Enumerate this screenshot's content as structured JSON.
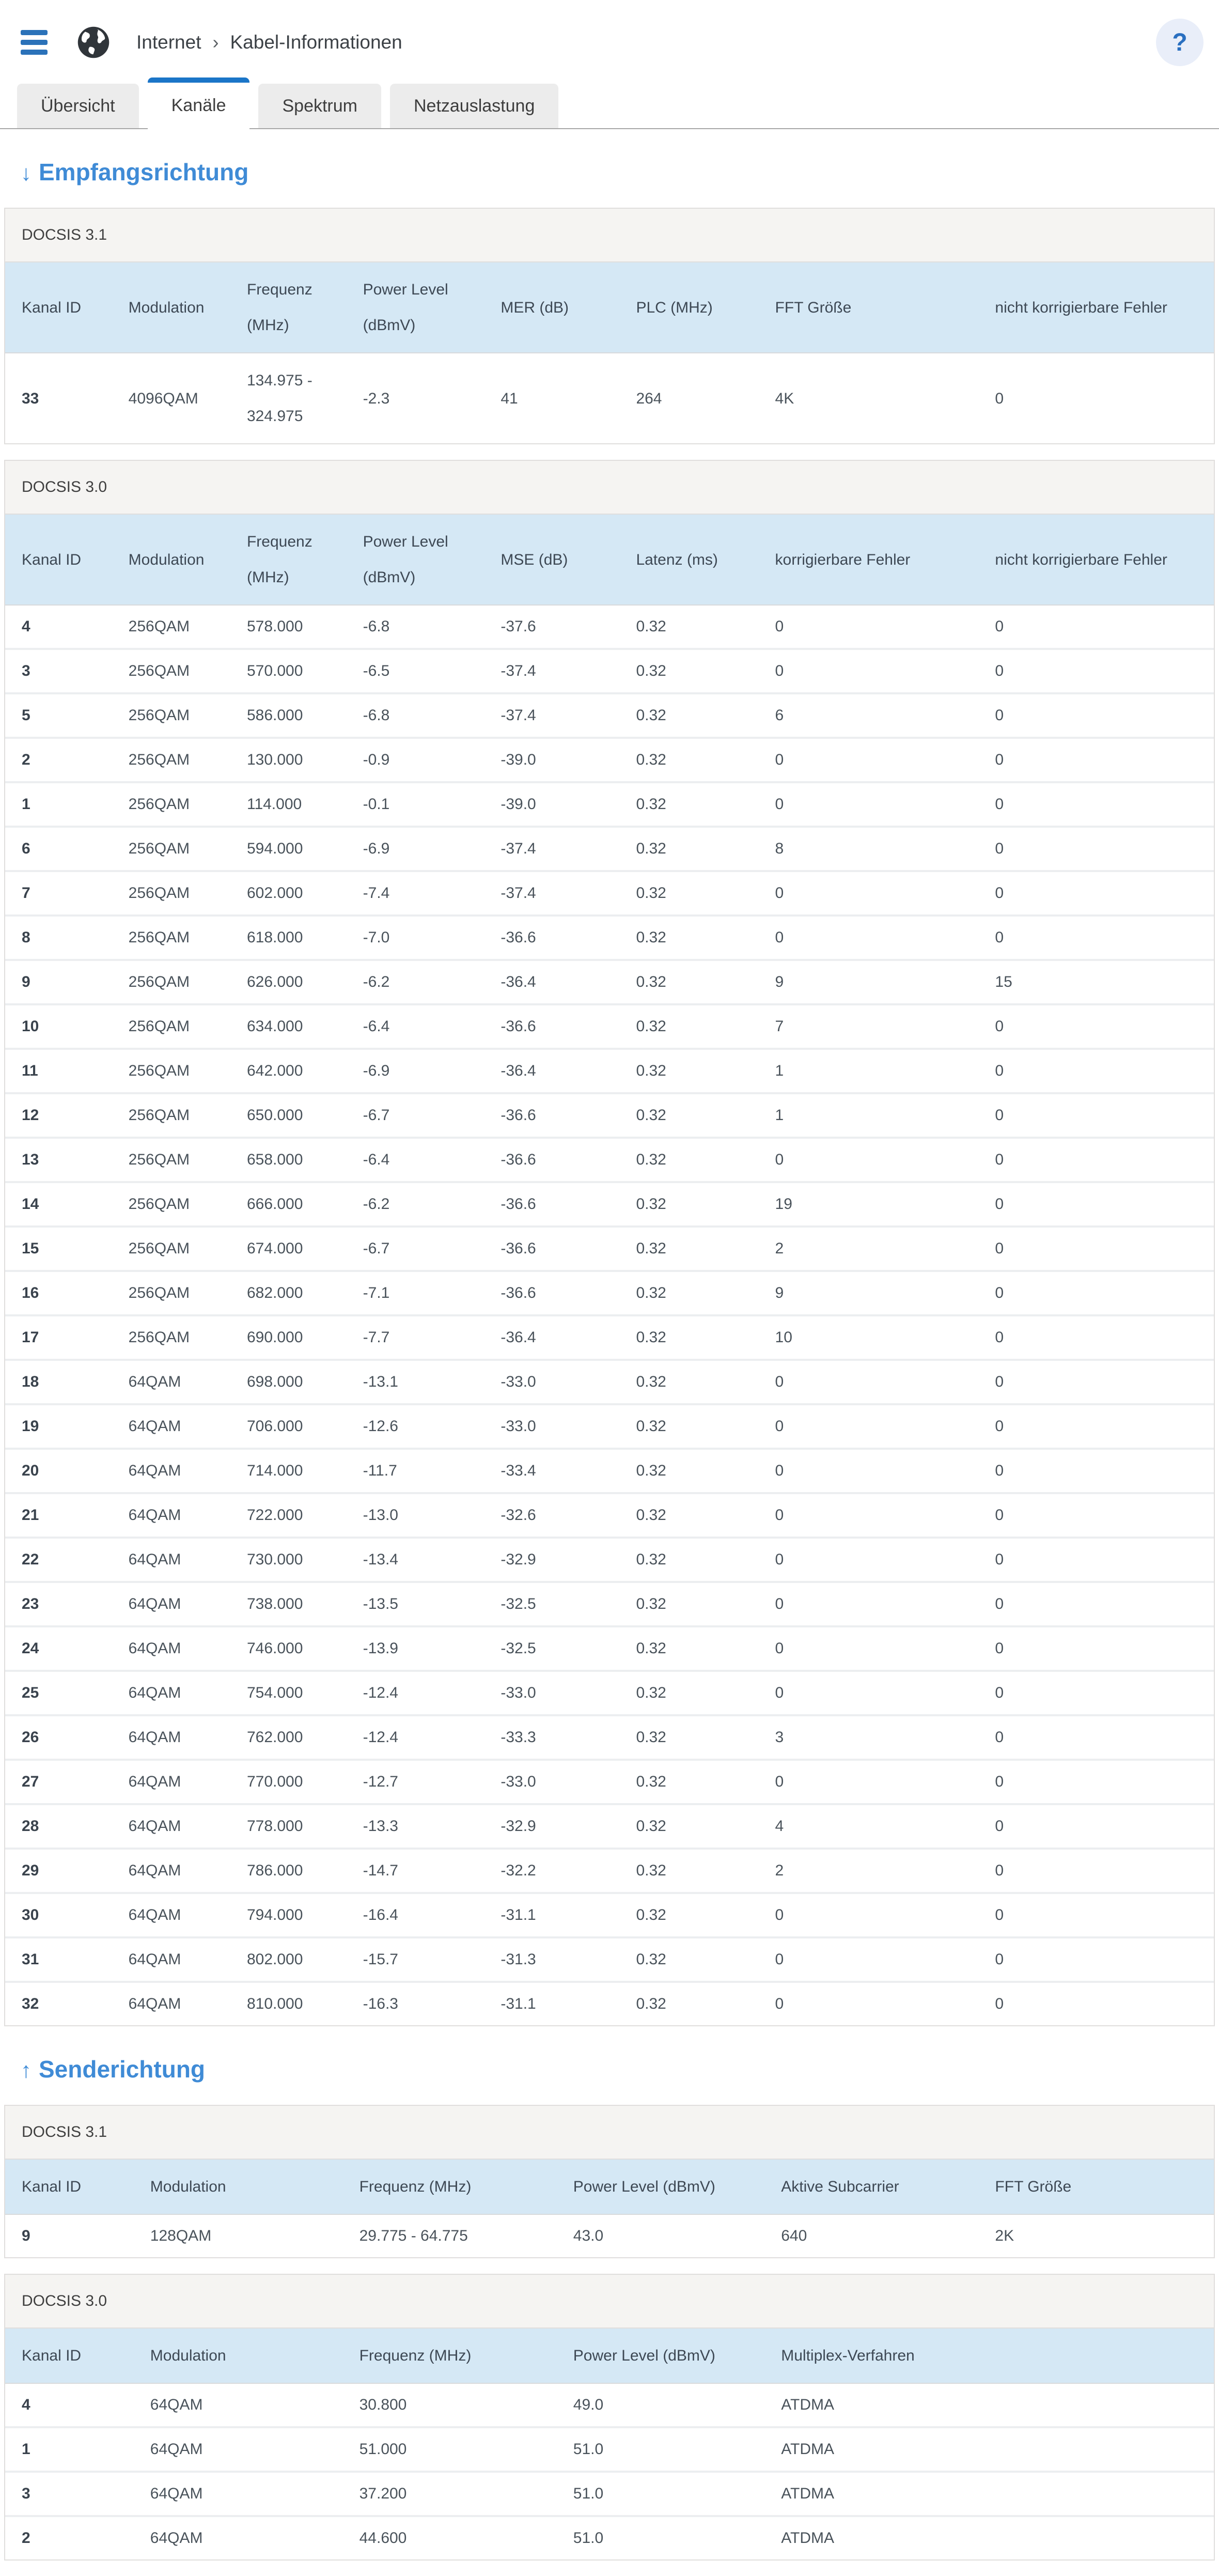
{
  "header": {
    "breadcrumb_section": "Internet",
    "breadcrumb_separator": "›",
    "breadcrumb_page": "Kabel-Informationen",
    "help_label": "?"
  },
  "tabs": [
    {
      "label": "Übersicht",
      "active": false
    },
    {
      "label": "Kanäle",
      "active": true
    },
    {
      "label": "Spektrum",
      "active": false
    },
    {
      "label": "Netzauslastung",
      "active": false
    }
  ],
  "colors": {
    "accent_blue": "#1b75c8",
    "heading_blue": "#3f8bd6",
    "hamburger_blue": "#2b72b9",
    "table_header_bg": "#d5e8f5",
    "section_label_bg": "#f5f4f2",
    "help_circle_bg": "#e9eef9"
  },
  "sections": [
    {
      "title": "Empfangsrichtung",
      "arrow": "↓",
      "tables": [
        {
          "docsis": "DOCSIS 3.1",
          "variant": "docsis31-down",
          "columns": [
            "Kanal ID",
            "Modulation",
            "Frequenz (MHz)",
            "Power Level (dBmV)",
            "MER (dB)",
            "PLC (MHz)",
            "FFT Größe",
            "nicht korrigierbare Fehler"
          ],
          "rows": [
            [
              "33",
              "4096QAM",
              "134.975 - 324.975",
              "-2.3",
              "41",
              "264",
              "4K",
              "0"
            ]
          ]
        },
        {
          "docsis": "DOCSIS 3.0",
          "variant": "docsis30-down",
          "columns": [
            "Kanal ID",
            "Modulation",
            "Frequenz (MHz)",
            "Power Level (dBmV)",
            "MSE (dB)",
            "Latenz (ms)",
            "korrigierbare Fehler",
            "nicht korrigierbare Fehler"
          ],
          "rows": [
            [
              "4",
              "256QAM",
              "578.000",
              "-6.8",
              "-37.6",
              "0.32",
              "0",
              "0"
            ],
            [
              "3",
              "256QAM",
              "570.000",
              "-6.5",
              "-37.4",
              "0.32",
              "0",
              "0"
            ],
            [
              "5",
              "256QAM",
              "586.000",
              "-6.8",
              "-37.4",
              "0.32",
              "6",
              "0"
            ],
            [
              "2",
              "256QAM",
              "130.000",
              "-0.9",
              "-39.0",
              "0.32",
              "0",
              "0"
            ],
            [
              "1",
              "256QAM",
              "114.000",
              "-0.1",
              "-39.0",
              "0.32",
              "0",
              "0"
            ],
            [
              "6",
              "256QAM",
              "594.000",
              "-6.9",
              "-37.4",
              "0.32",
              "8",
              "0"
            ],
            [
              "7",
              "256QAM",
              "602.000",
              "-7.4",
              "-37.4",
              "0.32",
              "0",
              "0"
            ],
            [
              "8",
              "256QAM",
              "618.000",
              "-7.0",
              "-36.6",
              "0.32",
              "0",
              "0"
            ],
            [
              "9",
              "256QAM",
              "626.000",
              "-6.2",
              "-36.4",
              "0.32",
              "9",
              "15"
            ],
            [
              "10",
              "256QAM",
              "634.000",
              "-6.4",
              "-36.6",
              "0.32",
              "7",
              "0"
            ],
            [
              "11",
              "256QAM",
              "642.000",
              "-6.9",
              "-36.4",
              "0.32",
              "1",
              "0"
            ],
            [
              "12",
              "256QAM",
              "650.000",
              "-6.7",
              "-36.6",
              "0.32",
              "1",
              "0"
            ],
            [
              "13",
              "256QAM",
              "658.000",
              "-6.4",
              "-36.6",
              "0.32",
              "0",
              "0"
            ],
            [
              "14",
              "256QAM",
              "666.000",
              "-6.2",
              "-36.6",
              "0.32",
              "19",
              "0"
            ],
            [
              "15",
              "256QAM",
              "674.000",
              "-6.7",
              "-36.6",
              "0.32",
              "2",
              "0"
            ],
            [
              "16",
              "256QAM",
              "682.000",
              "-7.1",
              "-36.6",
              "0.32",
              "9",
              "0"
            ],
            [
              "17",
              "256QAM",
              "690.000",
              "-7.7",
              "-36.4",
              "0.32",
              "10",
              "0"
            ],
            [
              "18",
              "64QAM",
              "698.000",
              "-13.1",
              "-33.0",
              "0.32",
              "0",
              "0"
            ],
            [
              "19",
              "64QAM",
              "706.000",
              "-12.6",
              "-33.0",
              "0.32",
              "0",
              "0"
            ],
            [
              "20",
              "64QAM",
              "714.000",
              "-11.7",
              "-33.4",
              "0.32",
              "0",
              "0"
            ],
            [
              "21",
              "64QAM",
              "722.000",
              "-13.0",
              "-32.6",
              "0.32",
              "0",
              "0"
            ],
            [
              "22",
              "64QAM",
              "730.000",
              "-13.4",
              "-32.9",
              "0.32",
              "0",
              "0"
            ],
            [
              "23",
              "64QAM",
              "738.000",
              "-13.5",
              "-32.5",
              "0.32",
              "0",
              "0"
            ],
            [
              "24",
              "64QAM",
              "746.000",
              "-13.9",
              "-32.5",
              "0.32",
              "0",
              "0"
            ],
            [
              "25",
              "64QAM",
              "754.000",
              "-12.4",
              "-33.0",
              "0.32",
              "0",
              "0"
            ],
            [
              "26",
              "64QAM",
              "762.000",
              "-12.4",
              "-33.3",
              "0.32",
              "3",
              "0"
            ],
            [
              "27",
              "64QAM",
              "770.000",
              "-12.7",
              "-33.0",
              "0.32",
              "0",
              "0"
            ],
            [
              "28",
              "64QAM",
              "778.000",
              "-13.3",
              "-32.9",
              "0.32",
              "4",
              "0"
            ],
            [
              "29",
              "64QAM",
              "786.000",
              "-14.7",
              "-32.2",
              "0.32",
              "2",
              "0"
            ],
            [
              "30",
              "64QAM",
              "794.000",
              "-16.4",
              "-31.1",
              "0.32",
              "0",
              "0"
            ],
            [
              "31",
              "64QAM",
              "802.000",
              "-15.7",
              "-31.3",
              "0.32",
              "0",
              "0"
            ],
            [
              "32",
              "64QAM",
              "810.000",
              "-16.3",
              "-31.1",
              "0.32",
              "0",
              "0"
            ]
          ]
        }
      ]
    },
    {
      "title": "Senderichtung",
      "arrow": "↑",
      "tables": [
        {
          "docsis": "DOCSIS 3.1",
          "variant": "docsis31-up",
          "columns": [
            "Kanal ID",
            "Modulation",
            "Frequenz (MHz)",
            "Power Level (dBmV)",
            "Aktive Subcarrier",
            "FFT Größe"
          ],
          "rows": [
            [
              "9",
              "128QAM",
              "29.775 - 64.775",
              "43.0",
              "640",
              "2K"
            ]
          ]
        },
        {
          "docsis": "DOCSIS 3.0",
          "variant": "docsis30-up",
          "columns": [
            "Kanal ID",
            "Modulation",
            "Frequenz (MHz)",
            "Power Level (dBmV)",
            "Multiplex-Verfahren"
          ],
          "rows": [
            [
              "4",
              "64QAM",
              "30.800",
              "49.0",
              "ATDMA"
            ],
            [
              "1",
              "64QAM",
              "51.000",
              "51.0",
              "ATDMA"
            ],
            [
              "3",
              "64QAM",
              "37.200",
              "51.0",
              "ATDMA"
            ],
            [
              "2",
              "64QAM",
              "44.600",
              "51.0",
              "ATDMA"
            ]
          ]
        }
      ]
    }
  ]
}
